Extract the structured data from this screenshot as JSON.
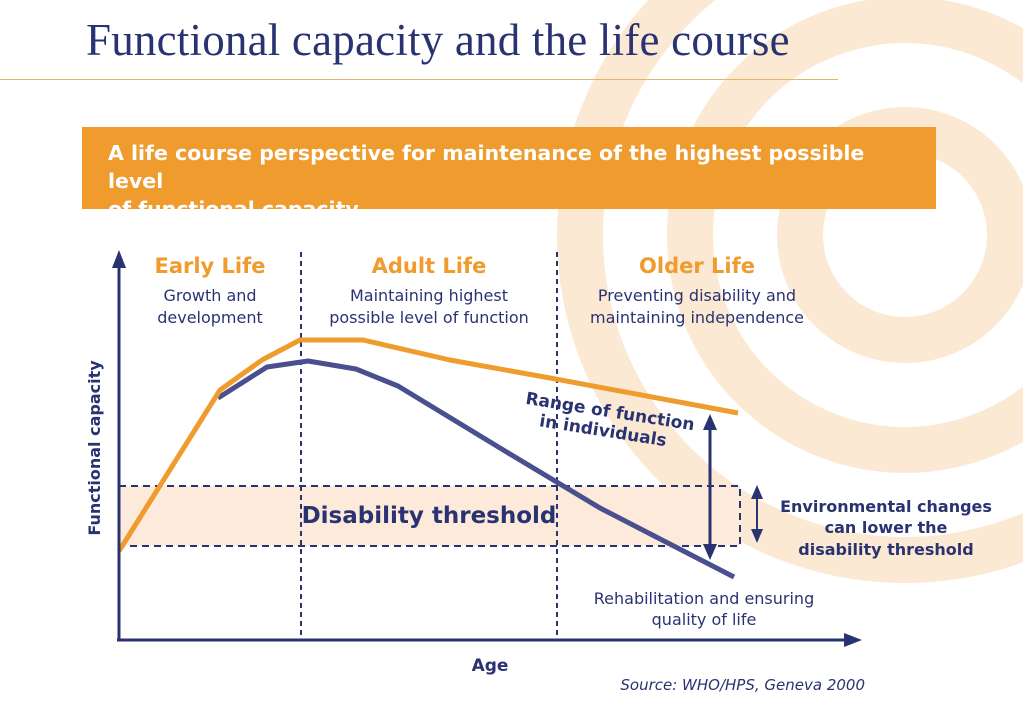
{
  "title": "Functional capacity and the life course",
  "banner": {
    "line1": "A life course perspective for maintenance of the highest possible level",
    "line2": "of functional capacity"
  },
  "stages": [
    {
      "title": "Early Life",
      "sub1": "Growth and",
      "sub2": "development"
    },
    {
      "title": "Adult Life",
      "sub1": "Maintaining highest",
      "sub2": "possible level of function"
    },
    {
      "title": "Older Life",
      "sub1": "Preventing disability and",
      "sub2": "maintaining independence"
    }
  ],
  "axes": {
    "ylabel": "Functional capacity",
    "xlabel": "Age"
  },
  "labels": {
    "disability_threshold": "Disability threshold",
    "range_line1": "Range of function",
    "range_line2": "in individuals",
    "env_line1": "Environmental changes",
    "env_line2": "can lower the",
    "env_line3": "disability threshold",
    "rehab_line1": "Rehabilitation and ensuring",
    "rehab_line2": "quality of life"
  },
  "source": "Source: WHO/HPS, Geneva 2000",
  "colors": {
    "orange": "#ef9b2d",
    "navy": "#2a3372",
    "navy_line": "#4a4f8e",
    "band": "#fdeada"
  }
}
